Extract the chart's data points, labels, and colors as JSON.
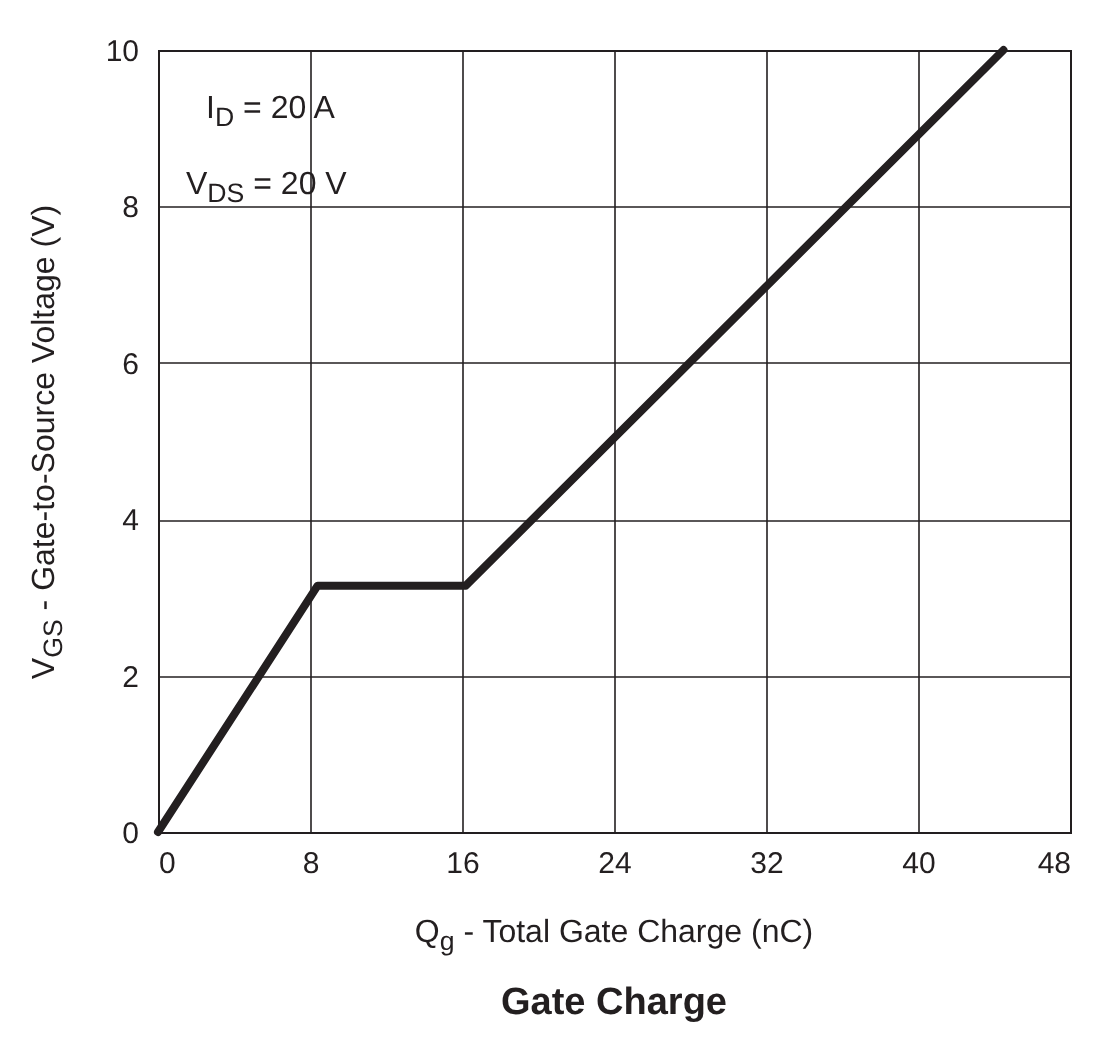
{
  "chart_data": {
    "type": "line",
    "title": "Gate Charge",
    "xlabel": "Q$_{g}$ -  Total Gate Charge (nC)",
    "ylabel": "V$_{GS}$ - Gate-to-Source Voltage (V)",
    "annotations": [
      "I$_{D}$ = 20 A",
      "V$_{DS}$ = 20 V"
    ],
    "series": [
      {
        "color": "#231f20",
        "x": [
          0,
          8.4,
          16.2,
          44.5
        ],
        "values": [
          0,
          3.15,
          3.15,
          10
        ]
      }
    ],
    "xlim": [
      0,
      48
    ],
    "xticks": [
      0,
      8,
      16,
      24,
      32,
      40,
      48
    ],
    "ylim": [
      0,
      10
    ],
    "yticks": [
      0,
      2,
      4,
      6,
      8,
      10
    ],
    "grid": true
  }
}
